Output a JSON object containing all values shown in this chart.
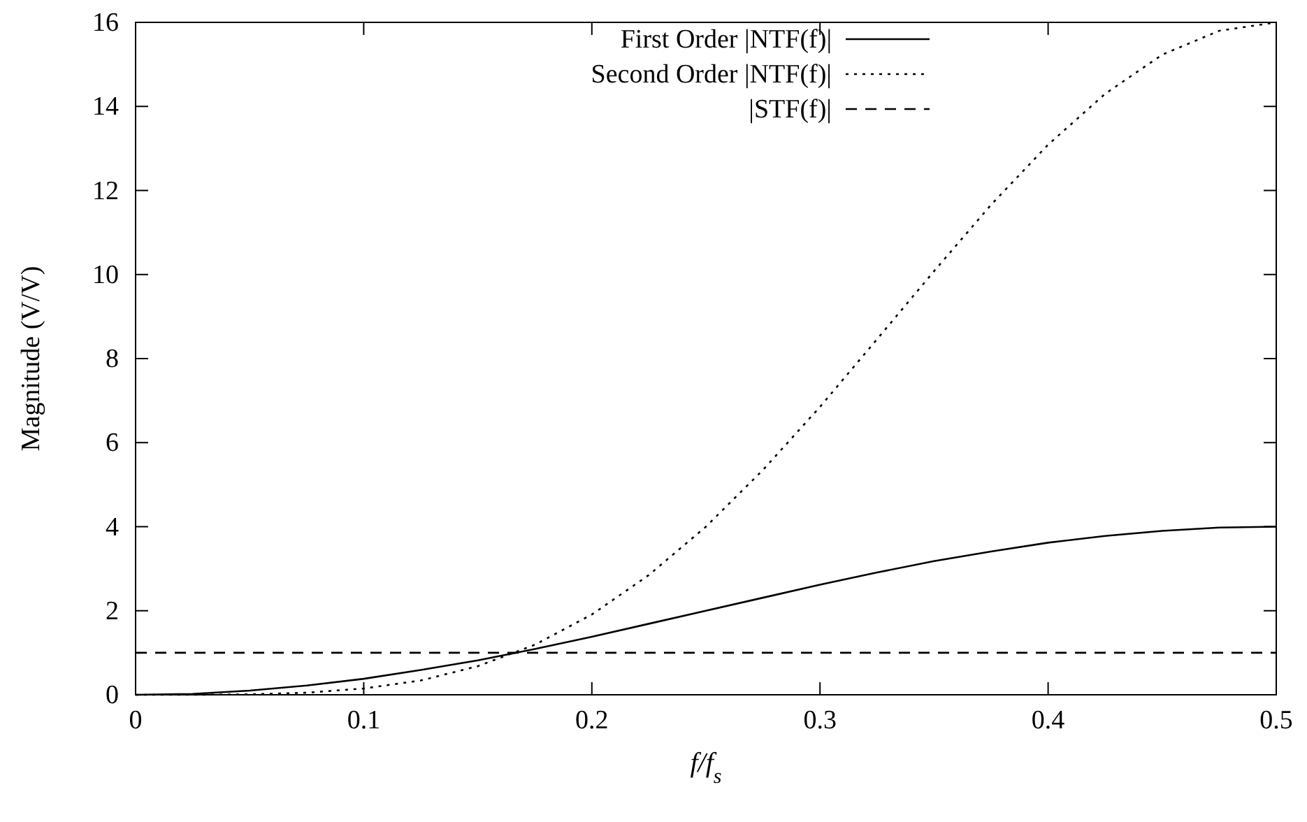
{
  "chart_data": {
    "type": "line",
    "xlabel": "f/f$_{s}$",
    "ylabel": "Magnitude (V/V)",
    "x": [
      0,
      0.025,
      0.05,
      0.075,
      0.1,
      0.125,
      0.15,
      0.175,
      0.2,
      0.225,
      0.25,
      0.275,
      0.3,
      0.325,
      0.35,
      0.375,
      0.4,
      0.425,
      0.45,
      0.475,
      0.5
    ],
    "series": [
      {
        "name": "First Order |NTF(f)|",
        "color": "#000000",
        "line_style": "solid",
        "values": [
          0,
          0.02,
          0.1,
          0.22,
          0.38,
          0.59,
          0.82,
          1.09,
          1.38,
          1.69,
          2,
          2.31,
          2.62,
          2.91,
          3.18,
          3.41,
          3.62,
          3.78,
          3.9,
          3.98,
          4
        ]
      },
      {
        "name": "Second Order |NTF(f)|",
        "color": "#000000",
        "line_style": "dotted",
        "values": [
          0,
          0,
          0.01,
          0.05,
          0.15,
          0.34,
          0.68,
          1.19,
          1.91,
          2.85,
          4,
          5.35,
          6.85,
          8.46,
          10.08,
          11.66,
          13.09,
          14.3,
          15.23,
          15.8,
          16
        ]
      },
      {
        "name": "|STF(f)|",
        "color": "#000000",
        "line_style": "dashed",
        "values": [
          1,
          1,
          1,
          1,
          1,
          1,
          1,
          1,
          1,
          1,
          1,
          1,
          1,
          1,
          1,
          1,
          1,
          1,
          1,
          1,
          1
        ]
      }
    ],
    "xlim": [
      0,
      0.5
    ],
    "xticks": [
      0,
      0.1,
      0.2,
      0.3,
      0.4,
      0.5
    ],
    "ylim": [
      0,
      16
    ],
    "yticks": [
      0,
      2,
      4,
      6,
      8,
      10,
      12,
      14,
      16
    ],
    "grid": false,
    "legend": "top"
  }
}
